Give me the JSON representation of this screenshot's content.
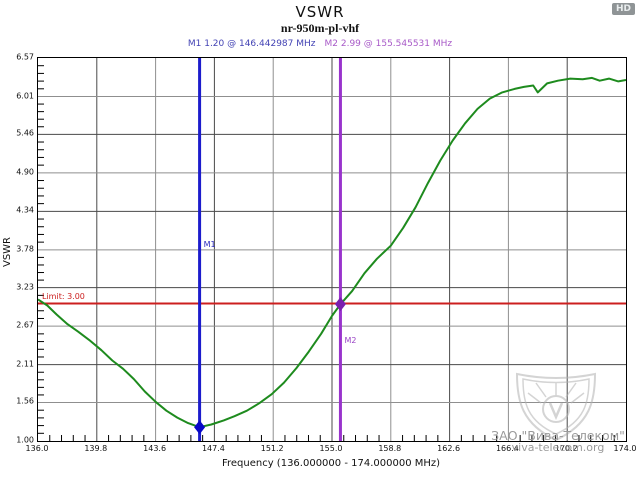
{
  "header": {
    "title": "VSWR",
    "subtitle": "nr-950m-pl-vhf",
    "hd_badge": "HD"
  },
  "markers_readout": {
    "m1": "M1   1.20 @ 146.442987 MHz",
    "m2": "M2   2.99 @ 155.545531 MHz"
  },
  "chart_data": {
    "type": "line",
    "title": "VSWR",
    "subtitle": "nr-950m-pl-vhf",
    "xlabel": "Frequency (136.000000 - 174.000000 MHz)",
    "ylabel": "VSWR",
    "xlim": [
      136.0,
      174.0
    ],
    "ylim": [
      1.0,
      6.57
    ],
    "grid": true,
    "x_ticks": [
      136.0,
      139.8,
      143.6,
      147.4,
      151.2,
      155.0,
      158.8,
      162.6,
      166.4,
      170.2,
      174.0
    ],
    "x_tick_labels": [
      "136.0",
      "139.8",
      "143.6",
      "147.4",
      "151.2",
      "155.0",
      "158.8",
      "162.6",
      "166.4",
      "170.2",
      "174.0"
    ],
    "y_ticks": [
      6.57,
      6.01,
      5.46,
      4.9,
      4.34,
      3.78,
      3.23,
      2.67,
      2.11,
      1.56,
      1.0
    ],
    "y_tick_labels": [
      "6.57",
      "6.01",
      "5.46",
      "4.90",
      "4.34",
      "3.78",
      "3.23",
      "2.67",
      "2.11",
      "1.56",
      "1.00"
    ],
    "minor_divisions": 5,
    "limit_line": {
      "value": 3.0,
      "label": "Limit: 3.00",
      "color": "#cc1f1f"
    },
    "markers": [
      {
        "name": "M1",
        "freq": 146.442987,
        "vswr": 1.2,
        "label_vswr": 3.85,
        "line_color": "#1c1ccc",
        "diamond_color": "#0808c8"
      },
      {
        "name": "M2",
        "freq": 155.545531,
        "vswr": 2.99,
        "label_vswr": 2.45,
        "line_color": "#9933cc",
        "diamond_color": "#7a1fae"
      }
    ],
    "series": [
      {
        "name": "nr-950m-pl-vhf",
        "color": "#1e8b1e",
        "points": [
          [
            136.0,
            3.06
          ],
          [
            136.6,
            2.97
          ],
          [
            137.2,
            2.84
          ],
          [
            137.9,
            2.7
          ],
          [
            138.6,
            2.59
          ],
          [
            139.3,
            2.47
          ],
          [
            140.1,
            2.32
          ],
          [
            140.8,
            2.17
          ],
          [
            141.5,
            2.05
          ],
          [
            142.2,
            1.9
          ],
          [
            142.9,
            1.72
          ],
          [
            143.6,
            1.57
          ],
          [
            144.3,
            1.44
          ],
          [
            145.0,
            1.34
          ],
          [
            145.7,
            1.26
          ],
          [
            146.44,
            1.2
          ],
          [
            147.2,
            1.24
          ],
          [
            148.0,
            1.3
          ],
          [
            148.7,
            1.36
          ],
          [
            149.5,
            1.44
          ],
          [
            150.3,
            1.55
          ],
          [
            151.1,
            1.68
          ],
          [
            151.9,
            1.85
          ],
          [
            152.7,
            2.06
          ],
          [
            153.5,
            2.3
          ],
          [
            154.3,
            2.56
          ],
          [
            155.0,
            2.82
          ],
          [
            155.55,
            2.99
          ],
          [
            156.3,
            3.18
          ],
          [
            157.1,
            3.44
          ],
          [
            157.9,
            3.65
          ],
          [
            158.8,
            3.84
          ],
          [
            159.6,
            4.1
          ],
          [
            160.4,
            4.4
          ],
          [
            161.2,
            4.75
          ],
          [
            162.0,
            5.08
          ],
          [
            162.8,
            5.37
          ],
          [
            163.6,
            5.62
          ],
          [
            164.4,
            5.83
          ],
          [
            165.2,
            5.98
          ],
          [
            166.0,
            6.07
          ],
          [
            166.8,
            6.12
          ],
          [
            167.4,
            6.15
          ],
          [
            168.0,
            6.17
          ],
          [
            168.3,
            6.07
          ],
          [
            168.9,
            6.2
          ],
          [
            169.6,
            6.24
          ],
          [
            170.4,
            6.27
          ],
          [
            171.2,
            6.26
          ],
          [
            171.8,
            6.28
          ],
          [
            172.3,
            6.24
          ],
          [
            172.9,
            6.27
          ],
          [
            173.5,
            6.23
          ],
          [
            174.0,
            6.25
          ]
        ]
      }
    ],
    "legend": null
  },
  "watermark": {
    "line1": "ЗАО \"Вива-Телеком\"",
    "line2": "viva-telecom.org"
  },
  "colors": {
    "grid_normal": "#8f8f8f",
    "grid_strong": "#4a4a4a",
    "axis": "#000000",
    "curve": "#1e8b1e",
    "limit": "#cc1f1f"
  }
}
